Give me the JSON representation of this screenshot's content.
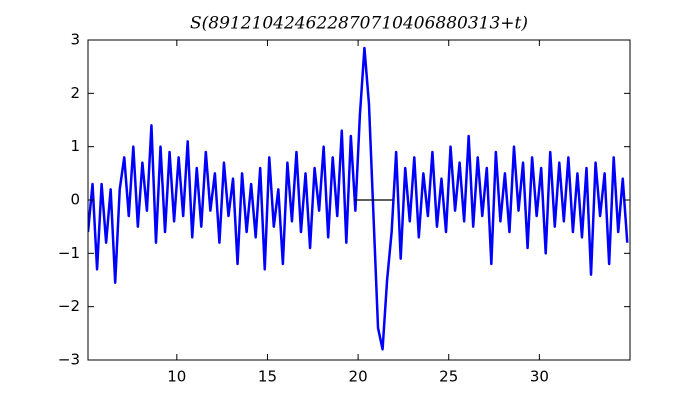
{
  "chart_data": {
    "type": "line",
    "title": "S(891210424622870710406880313+t)",
    "series": [
      {
        "color": "#0000ff",
        "x": [
          5.1,
          5.35,
          5.6,
          5.85,
          6.1,
          6.35,
          6.6,
          6.85,
          7.1,
          7.35,
          7.6,
          7.85,
          8.1,
          8.35,
          8.6,
          8.85,
          9.1,
          9.35,
          9.6,
          9.85,
          10.1,
          10.35,
          10.6,
          10.85,
          11.1,
          11.35,
          11.6,
          11.85,
          12.1,
          12.35,
          12.6,
          12.85,
          13.1,
          13.35,
          13.6,
          13.85,
          14.1,
          14.35,
          14.6,
          14.85,
          15.1,
          15.35,
          15.6,
          15.85,
          16.1,
          16.35,
          16.6,
          16.85,
          17.1,
          17.35,
          17.6,
          17.85,
          18.1,
          18.35,
          18.6,
          18.85,
          19.1,
          19.35,
          19.6,
          19.85,
          20.1,
          20.35,
          20.6,
          20.85,
          21.1,
          21.35,
          21.6,
          21.85,
          22.1,
          22.35,
          22.6,
          22.85,
          23.1,
          23.35,
          23.6,
          23.85,
          24.1,
          24.35,
          24.6,
          24.85,
          25.1,
          25.35,
          25.6,
          25.85,
          26.1,
          26.35,
          26.6,
          26.85,
          27.1,
          27.35,
          27.6,
          27.85,
          28.1,
          28.35,
          28.6,
          28.85,
          29.1,
          29.35,
          29.6,
          29.85,
          30.1,
          30.35,
          30.6,
          30.85,
          31.1,
          31.35,
          31.6,
          31.85,
          32.1,
          32.35,
          32.6,
          32.85,
          33.1,
          33.35,
          33.6,
          33.85,
          34.1,
          34.35,
          34.6,
          34.85
        ],
        "values": [
          -0.6,
          0.3,
          -1.3,
          0.3,
          -0.8,
          0.2,
          -1.55,
          0.2,
          0.8,
          -0.3,
          1.0,
          -0.5,
          0.7,
          -0.2,
          1.4,
          -0.8,
          1.0,
          -0.6,
          0.9,
          -0.4,
          0.8,
          -0.3,
          1.1,
          -0.7,
          0.6,
          -0.5,
          0.9,
          -0.2,
          0.5,
          -0.8,
          0.7,
          -0.3,
          0.4,
          -1.2,
          0.5,
          -0.6,
          0.3,
          -0.7,
          0.6,
          -1.3,
          0.8,
          -0.5,
          0.2,
          -1.2,
          0.7,
          -0.4,
          0.9,
          -0.6,
          0.5,
          -0.9,
          0.6,
          -0.2,
          1.0,
          -0.7,
          0.8,
          -0.3,
          1.3,
          -0.8,
          1.2,
          -0.2,
          1.6,
          2.85,
          1.8,
          -0.3,
          -2.4,
          -2.8,
          -1.5,
          -0.6,
          0.9,
          -1.1,
          0.6,
          -0.4,
          0.8,
          -0.7,
          0.5,
          -0.3,
          0.9,
          -0.5,
          0.4,
          -0.6,
          1.0,
          -0.2,
          0.7,
          -0.4,
          1.2,
          -0.5,
          0.8,
          -0.3,
          0.6,
          -1.2,
          0.9,
          -0.4,
          0.5,
          -0.6,
          1.0,
          -0.2,
          0.7,
          -0.9,
          0.8,
          -0.3,
          0.6,
          -1.0,
          0.9,
          -0.5,
          0.7,
          -0.4,
          0.8,
          -0.6,
          0.5,
          -0.7,
          0.6,
          -1.4,
          0.7,
          -0.3,
          0.5,
          -1.2,
          0.8,
          -0.6,
          0.4,
          -0.8
        ]
      },
      {
        "color": "#000000",
        "x": [
          19.8,
          21.9
        ],
        "values": [
          0,
          0
        ]
      }
    ],
    "xlim": [
      5.1,
      35
    ],
    "ylim": [
      -3,
      3
    ],
    "xticks": [
      10,
      15,
      20,
      25,
      30
    ],
    "yticks": [
      {
        "value": -3,
        "label": "−3"
      },
      {
        "value": -2,
        "label": "−2"
      },
      {
        "value": -1,
        "label": "−1"
      },
      0,
      1,
      2,
      3
    ]
  }
}
